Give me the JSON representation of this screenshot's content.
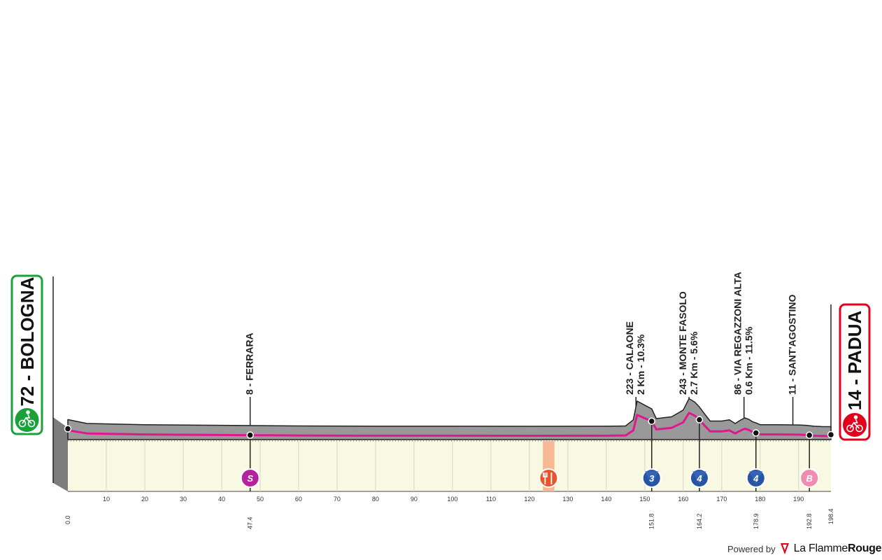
{
  "chart_data": {
    "type": "area",
    "title": "",
    "xlabel": "",
    "ylabel": "",
    "xlim": [
      0,
      198.4
    ],
    "x_ticks": [
      10,
      20,
      30,
      40,
      50,
      60,
      70,
      80,
      90,
      100,
      110,
      120,
      130,
      140,
      150,
      160,
      170,
      180,
      190
    ],
    "start": {
      "km": 0.0,
      "km_label": "0.0",
      "altitude": 72,
      "name": "72 - BOLOGNA"
    },
    "finish": {
      "km": 198.4,
      "km_label": "198.4",
      "altitude": 14,
      "name": "14 - PADUA"
    },
    "profile": {
      "km": [
        0,
        5,
        20,
        40,
        60,
        80,
        100,
        120,
        140,
        145,
        147,
        148,
        150,
        151.8,
        153,
        157,
        160,
        161.5,
        163,
        164.2,
        165.5,
        167,
        170,
        172,
        173.5,
        175,
        176,
        177,
        178,
        178.9,
        180,
        185,
        190,
        192,
        192.8,
        194,
        196,
        198.4
      ],
      "alt": [
        72,
        40,
        30,
        25,
        20,
        18,
        18,
        17,
        18,
        20,
        70,
        223,
        190,
        160,
        80,
        95,
        150,
        243,
        215,
        175,
        120,
        60,
        60,
        70,
        40,
        70,
        86,
        75,
        55,
        45,
        30,
        30,
        28,
        25,
        22,
        18,
        15,
        14
      ]
    },
    "annotations": [
      {
        "km": 47.4,
        "lines": [
          "8 - FERRARA"
        ]
      },
      {
        "km": 147.7,
        "lines": [
          "223 - CALAONE",
          "2 Km - 10.3%"
        ]
      },
      {
        "km": 161.5,
        "lines": [
          "243 - MONTE FASOLO",
          "2.7 Km - 5.6%"
        ]
      },
      {
        "km": 175.8,
        "lines": [
          "86 - VIA REGAZZONI ALTA",
          "0.6 Km - 11.5%"
        ]
      },
      {
        "km": 188.5,
        "lines": [
          "11 - SANT'AGOSTINO"
        ]
      }
    ],
    "points": [
      {
        "km": 47.4,
        "label": "47.4",
        "badge": "S",
        "color": "#b4239c"
      },
      {
        "km": 151.8,
        "label": "151.8",
        "badge": "3",
        "color": "#2754a3"
      },
      {
        "km": 164.2,
        "label": "164.2",
        "badge": "4",
        "color": "#2754a3"
      },
      {
        "km": 178.9,
        "label": "178.9",
        "badge": "4",
        "color": "#2754a3"
      },
      {
        "km": 192.8,
        "label": "192.8",
        "badge": "B",
        "color": "#f08cb0"
      }
    ],
    "feed_zone": {
      "km_from": 123.5,
      "km_to": 126.5,
      "color": "#f7b994"
    },
    "colors": {
      "terrain": "#999999",
      "road_line": "#e0178f",
      "base_fill": "#f8f8e3",
      "start_frame": "#1aa13a",
      "finish_frame": "#e3001b"
    }
  },
  "footer": {
    "powered_by": "Powered by",
    "brand_part1": "La Flamme",
    "brand_part2": "Rouge"
  }
}
